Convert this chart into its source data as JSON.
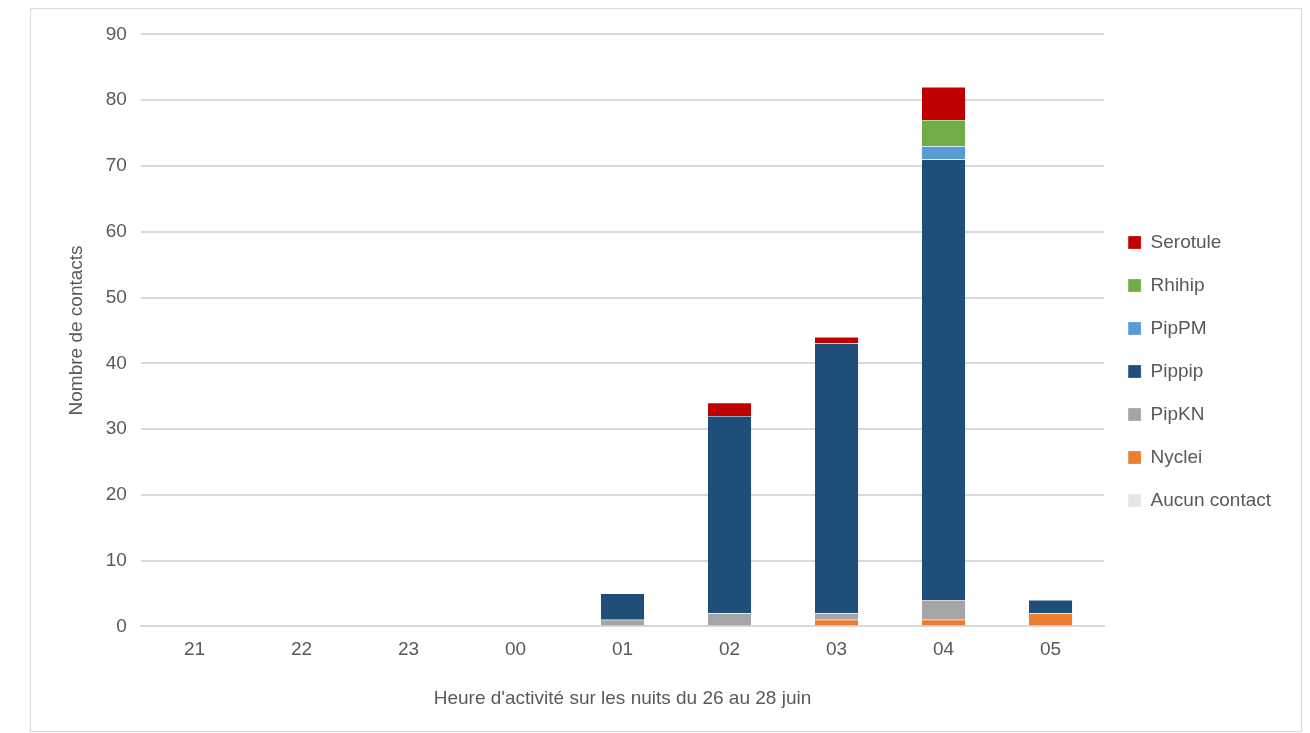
{
  "chart_data": {
    "type": "bar",
    "stacked": true,
    "xlabel": "Heure d'activité sur les nuits du 26 au 28 juin",
    "ylabel": "Nombre de contacts",
    "categories": [
      "21",
      "22",
      "23",
      "00",
      "01",
      "02",
      "03",
      "04",
      "05"
    ],
    "series": [
      {
        "name": "Aucun contact",
        "color": "#e7e6e6",
        "values": [
          0,
          0,
          0,
          0,
          0,
          0,
          0,
          0,
          0
        ]
      },
      {
        "name": "Nyclei",
        "color": "#ed7d31",
        "values": [
          0,
          0,
          0,
          0,
          0,
          0,
          1,
          1,
          2
        ]
      },
      {
        "name": "PipKN",
        "color": "#a5a5a5",
        "values": [
          0,
          0,
          0,
          0,
          1,
          2,
          1,
          3,
          0
        ]
      },
      {
        "name": "Pippip",
        "color": "#1f4e79",
        "values": [
          0,
          0,
          0,
          0,
          4,
          30,
          41,
          67,
          2
        ]
      },
      {
        "name": "PipPM",
        "color": "#5b9bd5",
        "values": [
          0,
          0,
          0,
          0,
          0,
          0,
          0,
          2,
          0
        ]
      },
      {
        "name": "Rhihip",
        "color": "#70ad47",
        "values": [
          0,
          0,
          0,
          0,
          0,
          0,
          0,
          4,
          0
        ]
      },
      {
        "name": "Serotule",
        "color": "#c00000",
        "values": [
          0,
          0,
          0,
          0,
          0,
          2,
          1,
          5,
          0
        ]
      }
    ],
    "ylim": [
      0,
      90
    ],
    "yticks": [
      0,
      10,
      20,
      30,
      40,
      50,
      60,
      70,
      80,
      90
    ],
    "grid": "y",
    "legend": "right"
  }
}
